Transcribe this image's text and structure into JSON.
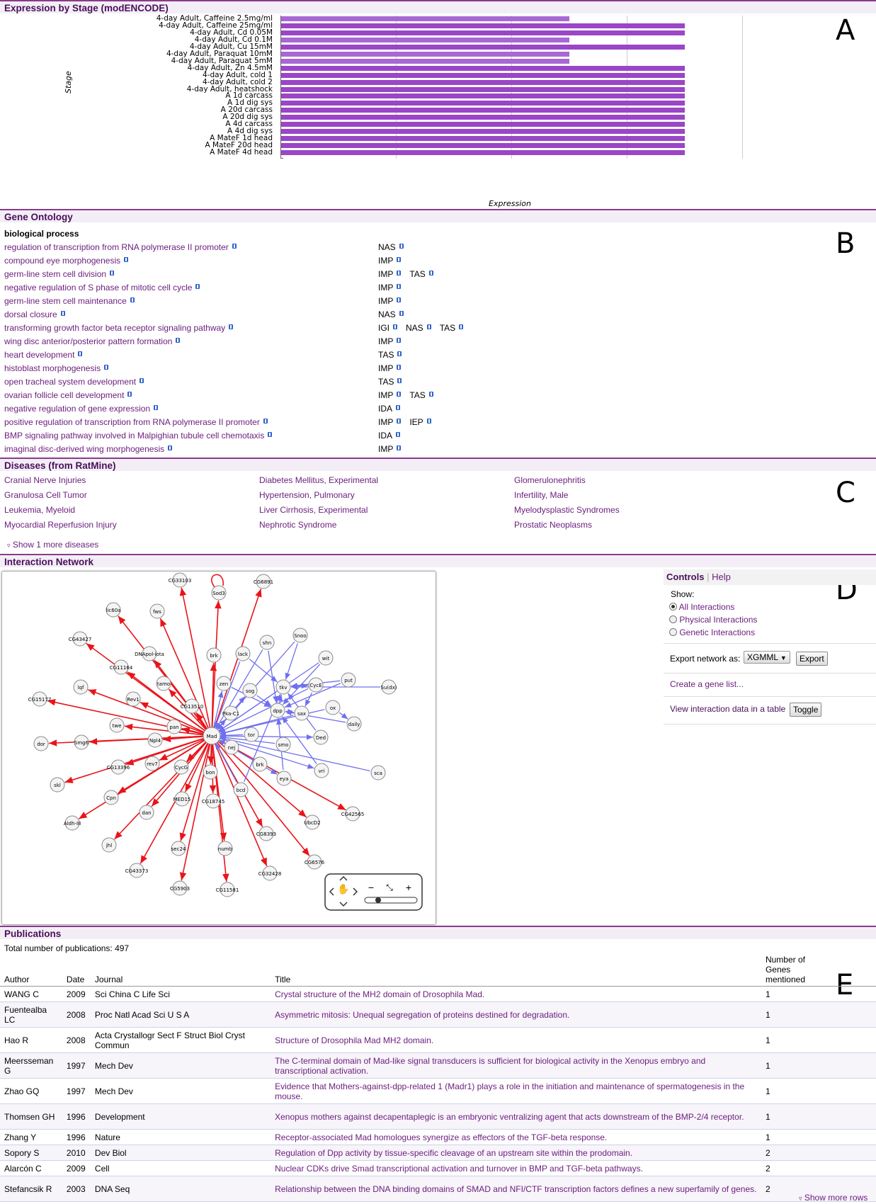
{
  "expression": {
    "header": "Expression by Stage (modENCODE)",
    "ylabel": "Stage",
    "xlabel": "Expression",
    "panel_letter": "A"
  },
  "chart_data": {
    "type": "bar",
    "orientation": "horizontal",
    "title": "Expression by Stage (modENCODE)",
    "xlabel": "Expression",
    "ylabel": "Stage",
    "categories": [
      "4-day Adult, Caffeine 2.5mg/ml",
      "4-day Adult, Caffeine 25mg/ml",
      "4-day Adult, Cd 0.05M",
      "4-day Adult, Cd 0.1M",
      "4-day Adult, Cu 15mM",
      "4-day Adult, Paraquat 10mM",
      "4-day Adult, Paraquat 5mM",
      "4-day Adult, Zn 4.5mM",
      "4-day Adult, cold 1",
      "4-day Adult, cold 2",
      "4-day Adult, heatshock",
      "A 1d carcass",
      "A 1d dig sys",
      "A 20d carcass",
      "A 20d dig sys",
      "A 4d carcass",
      "A 4d dig sys",
      "A MateF 1d head",
      "A MateF 20d head",
      "A MateF 4d head"
    ],
    "values": [
      5,
      7,
      7,
      5,
      7,
      5,
      5,
      7,
      7,
      7,
      7,
      7,
      7,
      7,
      7,
      7,
      7,
      7,
      7,
      7
    ],
    "xlim": [
      0,
      8
    ],
    "grid": true,
    "colors": {
      "level5": "#a868d4",
      "level7": "#9a46c6"
    }
  },
  "go": {
    "header": "Gene Ontology",
    "panel_letter": "B",
    "category": "biological process",
    "terms": [
      {
        "term": "regulation of transcription from RNA polymerase II promoter",
        "evidence": [
          "NAS"
        ]
      },
      {
        "term": "compound eye morphogenesis",
        "evidence": [
          "IMP"
        ]
      },
      {
        "term": "germ-line stem cell division",
        "evidence": [
          "IMP",
          "TAS"
        ]
      },
      {
        "term": "negative regulation of S phase of mitotic cell cycle",
        "evidence": [
          "IMP"
        ]
      },
      {
        "term": "germ-line stem cell maintenance",
        "evidence": [
          "IMP"
        ]
      },
      {
        "term": "dorsal closure",
        "evidence": [
          "NAS"
        ]
      },
      {
        "term": "transforming growth factor beta receptor signaling pathway",
        "evidence": [
          "IGI",
          "NAS",
          "TAS"
        ]
      },
      {
        "term": "wing disc anterior/posterior pattern formation",
        "evidence": [
          "IMP"
        ]
      },
      {
        "term": "heart development",
        "evidence": [
          "TAS"
        ]
      },
      {
        "term": "histoblast morphogenesis",
        "evidence": [
          "IMP"
        ]
      },
      {
        "term": "open tracheal system development",
        "evidence": [
          "TAS"
        ]
      },
      {
        "term": "ovarian follicle cell development",
        "evidence": [
          "IMP",
          "TAS"
        ]
      },
      {
        "term": "negative regulation of gene expression",
        "evidence": [
          "IDA"
        ]
      },
      {
        "term": "positive regulation of transcription from RNA polymerase II promoter",
        "evidence": [
          "IMP",
          "IEP"
        ]
      },
      {
        "term": "BMP signaling pathway involved in Malpighian tubule cell chemotaxis",
        "evidence": [
          "IDA"
        ]
      },
      {
        "term": "imaginal disc-derived wing morphogenesis",
        "evidence": [
          "IMP"
        ]
      }
    ]
  },
  "diseases": {
    "header": "Diseases (from RatMine)",
    "panel_letter": "C",
    "col1": [
      "Cranial Nerve Injuries",
      "Granulosa Cell Tumor",
      "Leukemia, Myeloid",
      "Myocardial Reperfusion Injury"
    ],
    "col2": [
      "Diabetes Mellitus, Experimental",
      "Hypertension, Pulmonary",
      "Liver Cirrhosis, Experimental",
      "Nephrotic Syndrome"
    ],
    "col3": [
      "Glomerulonephritis",
      "Infertility, Male",
      "Myelodysplastic Syndromes",
      "Prostatic Neoplasms"
    ],
    "show_more": "Show 1 more diseases"
  },
  "network": {
    "header": "Interaction Network",
    "panel_letter": "D",
    "center": "Mad",
    "nodes": [
      "CG33103",
      "Sod3",
      "CG6891",
      "lic60a",
      "fws",
      "CG43427",
      "DNApol-iota",
      "brk",
      "lack",
      "shn",
      "Snoo",
      "CG11164",
      "Mad",
      "wit",
      "tamo",
      "zen",
      "tkv",
      "CycE",
      "put",
      "Su(dx)",
      "lqf",
      "Rev1",
      "sog",
      "CG15177",
      "CG13510",
      "Pka-C1",
      "dpp",
      "sax",
      "ox",
      "twe",
      "pan",
      "daily",
      "Ded",
      "Npl4",
      "tor",
      "dor",
      "Smg6",
      "smo",
      "nej",
      "CG13396",
      "rev7",
      "CycG",
      "bon",
      "brk2",
      "eya",
      "vri",
      "sca",
      "skl",
      "Cpn",
      "MED15",
      "CG18745",
      "bcd",
      "Aldh-III",
      "dan",
      "UbcD2",
      "CG42565",
      "CG8393",
      "jhl",
      "sec24",
      "numb",
      "CG6576",
      "CG43373",
      "CG32428",
      "CG5903",
      "CG11581"
    ],
    "controls": {
      "tab_controls": "Controls",
      "tab_help": "Help",
      "show_label": "Show:",
      "radio_all": "All Interactions",
      "radio_physical": "Physical Interactions",
      "radio_genetic": "Genetic Interactions",
      "export_label": "Export network as:",
      "export_format": "XGMML",
      "export_button": "Export",
      "create_list": "Create a gene list...",
      "table_label": "View interaction data in a table",
      "toggle_button": "Toggle"
    }
  },
  "publications": {
    "header": "Publications",
    "panel_letter": "E",
    "total": "Total number of publications: 497",
    "columns": [
      "Author",
      "Date",
      "Journal",
      "Title",
      "Number of Genes mentioned"
    ],
    "rows": [
      {
        "author": "WANG C",
        "date": "2009",
        "journal": "Sci China C Life Sci",
        "title": "Crystal structure of the MH2 domain of Drosophila Mad.",
        "genes": "1"
      },
      {
        "author": "Fuentealba LC",
        "date": "2008",
        "journal": "Proc Natl Acad Sci U S A",
        "title": "Asymmetric mitosis: Unequal segregation of proteins destined for degradation.",
        "genes": "1"
      },
      {
        "author": "Hao R",
        "date": "2008",
        "journal": "Acta Crystallogr Sect F Struct Biol Cryst Commun",
        "title": "Structure of Drosophila Mad MH2 domain.",
        "genes": "1"
      },
      {
        "author": "Meersseman G",
        "date": "1997",
        "journal": "Mech Dev",
        "title": "The C-terminal domain of Mad-like signal transducers is sufficient for biological activity in the Xenopus embryo and transcriptional activation.",
        "genes": "1"
      },
      {
        "author": "Zhao GQ",
        "date": "1997",
        "journal": "Mech Dev",
        "title": "Evidence that Mothers-against-dpp-related 1 (Madr1) plays a role in the initiation and maintenance of spermatogenesis in the mouse.",
        "genes": "1"
      },
      {
        "author": "Thomsen GH",
        "date": "1996",
        "journal": "Development",
        "title": "Xenopus mothers against decapentaplegic is an embryonic ventralizing agent that acts downstream of the BMP-2/4 receptor.",
        "genes": "1"
      },
      {
        "author": "Zhang Y",
        "date": "1996",
        "journal": "Nature",
        "title": "Receptor-associated Mad homologues synergize as effectors of the TGF-beta response.",
        "genes": "1"
      },
      {
        "author": "Sopory S",
        "date": "2010",
        "journal": "Dev Biol",
        "title": "Regulation of Dpp activity by tissue-specific cleavage of an upstream site within the prodomain.",
        "genes": "2"
      },
      {
        "author": "Alarcón C",
        "date": "2009",
        "journal": "Cell",
        "title": "Nuclear CDKs drive Smad transcriptional activation and turnover in BMP and TGF-beta pathways.",
        "genes": "2"
      },
      {
        "author": "Stefancsik R",
        "date": "2003",
        "journal": "DNA Seq",
        "title": "Relationship between the DNA binding domains of SMAD and NFI/CTF transcription factors defines a new superfamily of genes.",
        "genes": "2"
      }
    ],
    "show_more": "Show more rows"
  }
}
